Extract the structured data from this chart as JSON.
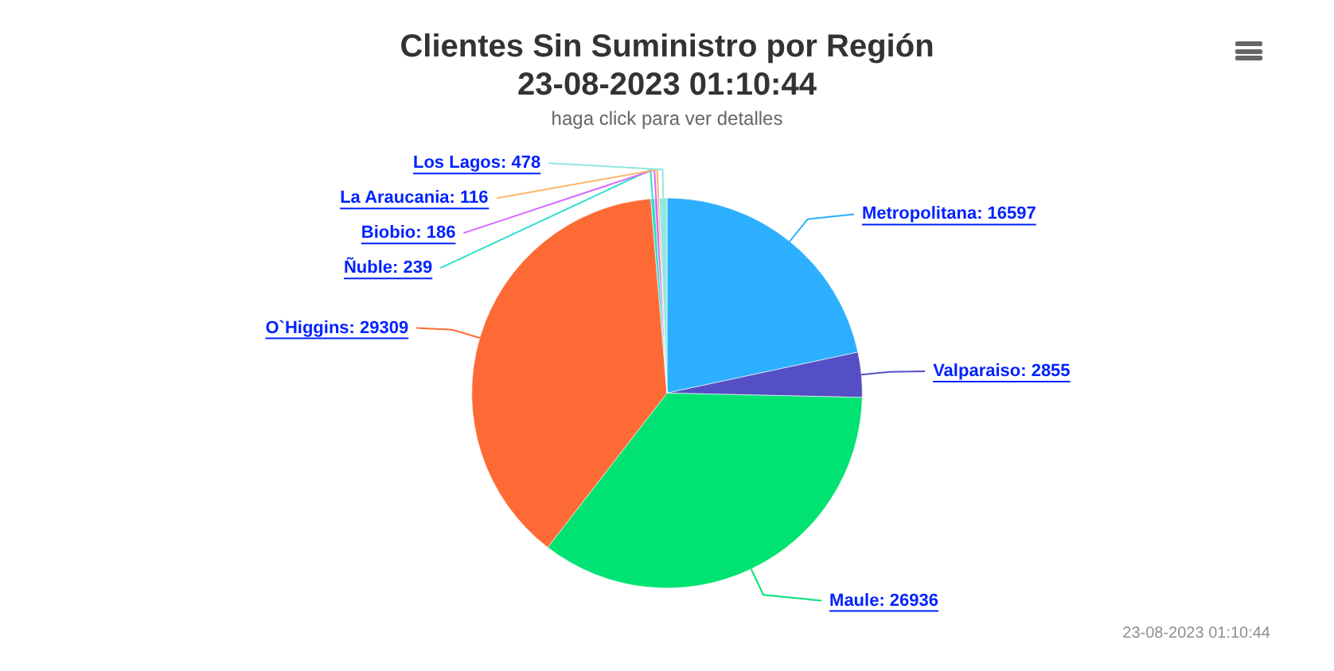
{
  "chart_data": {
    "type": "pie",
    "title": "Clientes Sin Suministro por Región\n23-08-2023 01:10:44",
    "subtitle": "haga click para ver detalles",
    "categories": [
      "Metropolitana: 16597",
      "Valparaiso: 2855",
      "Maule: 26936",
      "O`Higgins: 29309",
      "Ñuble: 239",
      "Biobio: 186",
      "La Araucania: 116",
      "Los Lagos: 478"
    ],
    "values": [
      16597,
      2855,
      26936,
      29309,
      239,
      186,
      116,
      478
    ],
    "colors": [
      "#2caffe",
      "#544fc5",
      "#00e272",
      "#fe6a35",
      "#2ee0ca",
      "#d568fb",
      "#feb56a",
      "#91e8e1"
    ],
    "legend": false,
    "annotations": [
      "23-08-2023 01:10:44"
    ]
  }
}
